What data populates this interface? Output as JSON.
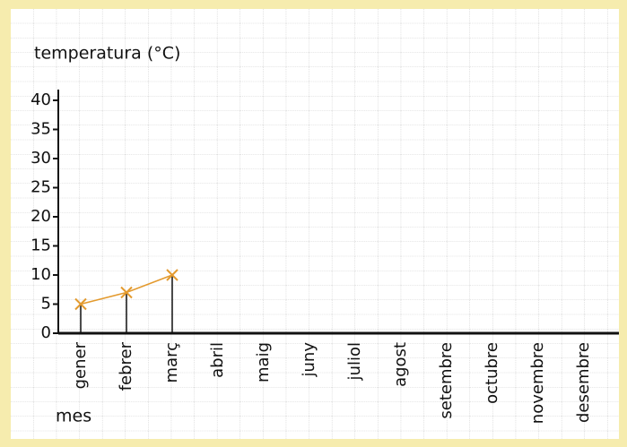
{
  "chart_data": {
    "type": "line",
    "y_label": "temperatura (°C)",
    "x_label": "mes",
    "categories": [
      "gener",
      "febrer",
      "març",
      "abril",
      "maig",
      "juny",
      "juliol",
      "agost",
      "setembre",
      "octubre",
      "novembre",
      "desembre"
    ],
    "values": [
      5,
      7,
      10,
      null,
      null,
      null,
      null,
      null,
      null,
      null,
      null,
      null
    ],
    "color": "#e39a2e",
    "marker": "x",
    "drop_lines": true,
    "ylim": [
      0,
      40
    ],
    "yticks": [
      0,
      5,
      10,
      15,
      20,
      25,
      30,
      35,
      40
    ]
  }
}
